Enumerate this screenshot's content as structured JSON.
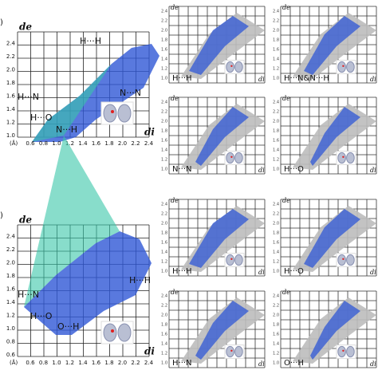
{
  "large_panels": [
    {
      "label": ")",
      "y_axis": "de",
      "x_axis": "di",
      "unit": "(Å)",
      "yticks": [
        "2.4",
        "2.2",
        "2.0",
        "1.8",
        "1.6",
        "1.4",
        "1.2",
        "1.0"
      ],
      "xticks": [
        "0.6",
        "0.8",
        "1.0",
        "1.2",
        "1.4",
        "1.6",
        "1.8",
        "2.0",
        "2.2",
        "2.4"
      ],
      "contacts": [
        "H···H",
        "H···N",
        "N···N",
        "H···O",
        "N···H"
      ]
    },
    {
      "label": ")",
      "y_axis": "de",
      "x_axis": "di",
      "unit": "(Å)",
      "yticks": [
        "2.4",
        "2.2",
        "2.0",
        "1.8",
        "1.6",
        "1.4",
        "1.2",
        "1.0",
        "0.8",
        "0.6"
      ],
      "xticks": [
        "0.6",
        "0.8",
        "1.0",
        "1.2",
        "1.4",
        "1.6",
        "1.8",
        "2.0",
        "2.2",
        "2.4"
      ],
      "contacts": [
        "H···N",
        "H···H",
        "H···O",
        "O···H"
      ]
    }
  ],
  "small_panels": [
    {
      "y_axis": "de",
      "x_axis": "di",
      "yticks": [
        "2.4",
        "2.2",
        "2.0",
        "1.8",
        "1.6",
        "1.4",
        "1.2",
        "1.0"
      ],
      "contact": "H···H"
    },
    {
      "y_axis": "de",
      "x_axis": "di",
      "yticks": [
        "2.4",
        "2.2",
        "2.0",
        "1.8",
        "1.6",
        "1.4",
        "1.2",
        "1.0"
      ],
      "contact": "H···N&N···H"
    },
    {
      "y_axis": "de",
      "x_axis": "di",
      "yticks": [
        "2.4",
        "2.2",
        "2.0",
        "1.8",
        "1.6",
        "1.4",
        "1.2",
        "1.0"
      ],
      "contact": "N···N"
    },
    {
      "y_axis": "de",
      "x_axis": "di",
      "yticks": [
        "2.4",
        "2.2",
        "2.0",
        "1.8",
        "1.6",
        "1.4",
        "1.2",
        "1.0"
      ],
      "contact": "H···O"
    },
    {
      "y_axis": "de",
      "x_axis": "di",
      "yticks": [
        "2.4",
        "2.2",
        "2.0",
        "1.8",
        "1.6",
        "1.4",
        "1.2",
        "1.0"
      ],
      "contact": "H···H"
    },
    {
      "y_axis": "de",
      "x_axis": "di",
      "yticks": [
        "2.4",
        "2.2",
        "2.0",
        "1.8",
        "1.6",
        "1.4",
        "1.2",
        "1.0"
      ],
      "contact": "H···O"
    },
    {
      "y_axis": "de",
      "x_axis": "di",
      "yticks": [
        "2.4",
        "2.2",
        "2.0",
        "1.8",
        "1.6",
        "1.4",
        "1.2",
        "1.0"
      ],
      "contact": "H···N"
    },
    {
      "y_axis": "de",
      "x_axis": "di",
      "yticks": [
        "2.4",
        "2.2",
        "2.0",
        "1.8",
        "1.6",
        "1.4",
        "1.2",
        "1.0"
      ],
      "contact": "O···H"
    }
  ]
}
